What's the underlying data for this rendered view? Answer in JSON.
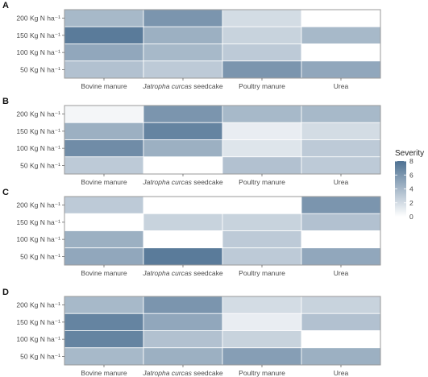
{
  "panel_labels": [
    "A",
    "B",
    "C",
    "D"
  ],
  "legend": {
    "title": "Severity",
    "ticks": [
      "0",
      "2",
      "4",
      "6",
      "8"
    ],
    "color_low": "#ffffff",
    "color_high": "#4f7293"
  },
  "chart_data": [
    {
      "type": "heatmap",
      "panel": "A",
      "x_categories": [
        "Bovine manure",
        "Jatropha curcas seedcake",
        "Poultry manure",
        "Urea"
      ],
      "y_categories": [
        "200 Kg N ha⁻¹",
        "150 Kg N ha⁻¹",
        "100 Kg N ha⁻¹",
        "50 Kg N ha⁻¹"
      ],
      "values": [
        [
          4,
          6,
          2,
          0
        ],
        [
          7.5,
          4.5,
          2.5,
          4
        ],
        [
          5,
          4,
          3,
          0
        ],
        [
          3.5,
          3,
          6,
          5
        ]
      ],
      "zlim": [
        0,
        8
      ]
    },
    {
      "type": "heatmap",
      "panel": "B",
      "x_categories": [
        "Bovine manure",
        "Jatropha curcas seedcake",
        "Poultry manure",
        "Urea"
      ],
      "y_categories": [
        "200 Kg N ha⁻¹",
        "150 Kg N ha⁻¹",
        "100 Kg N ha⁻¹",
        "50 Kg N ha⁻¹"
      ],
      "values": [
        [
          0.5,
          6,
          4,
          4
        ],
        [
          4.5,
          7,
          1,
          2
        ],
        [
          6.5,
          4.5,
          1.5,
          3
        ],
        [
          3,
          0,
          3.5,
          3
        ]
      ],
      "zlim": [
        0,
        8
      ]
    },
    {
      "type": "heatmap",
      "panel": "C",
      "x_categories": [
        "Bovine manure",
        "Jatropha curcas seedcake",
        "Poultry manure",
        "Urea"
      ],
      "y_categories": [
        "200 Kg N ha⁻¹",
        "150 Kg N ha⁻¹",
        "100 Kg N ha⁻¹",
        "50 Kg N ha⁻¹"
      ],
      "values": [
        [
          3,
          0,
          0,
          6
        ],
        [
          0,
          2.5,
          2.5,
          3.5
        ],
        [
          4.5,
          0,
          3,
          0
        ],
        [
          5,
          7.5,
          3,
          5
        ]
      ],
      "zlim": [
        0,
        8
      ]
    },
    {
      "type": "heatmap",
      "panel": "D",
      "x_categories": [
        "Bovine manure",
        "Jatropha curcas seedcake",
        "Poultry manure",
        "Urea"
      ],
      "y_categories": [
        "200 Kg N ha⁻¹",
        "150 Kg N ha⁻¹",
        "100 Kg N ha⁻¹",
        "50 Kg N ha⁻¹"
      ],
      "values": [
        [
          4,
          6,
          2,
          2.5
        ],
        [
          7,
          5,
          1,
          3.5
        ],
        [
          7,
          3.5,
          2.5,
          0
        ],
        [
          4,
          4.5,
          5.5,
          4.5
        ]
      ],
      "zlim": [
        0,
        8
      ]
    }
  ]
}
